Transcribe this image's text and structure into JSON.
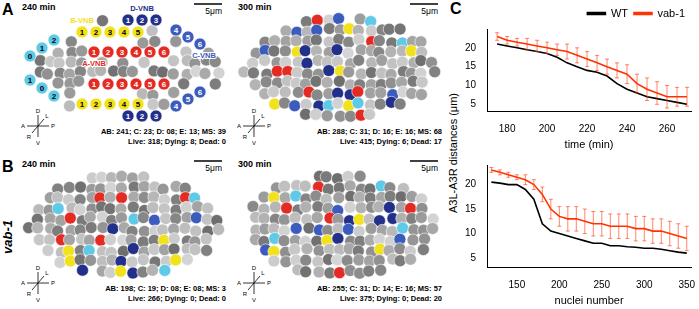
{
  "panels": [
    {
      "label": "A",
      "images": [
        {
          "time": "240 min",
          "scale_bar": "5μm",
          "counts": "AB: 241; C: 23; D: 08; E: 13; MS: 39",
          "status": "Live: 318; Dying: 8; Dead: 0",
          "groups": [
            {
              "color": "#5fc9e8",
              "numbers": [
                "0",
                "1",
                "2",
                "1",
                "0",
                "2"
              ]
            },
            {
              "name": "B-VNB",
              "color": "#f2e21c",
              "numbers": [
                "1",
                "2",
                "3",
                "4",
                "5",
                "1",
                "2",
                "3",
                "4",
                "5"
              ]
            },
            {
              "name": "A-VNB",
              "color": "#e32b24",
              "numbers": [
                "1",
                "2",
                "3",
                "4",
                "5",
                "6",
                "1",
                "2",
                "3",
                "4",
                "5",
                "6"
              ]
            },
            {
              "name": "D-VNB",
              "color": "#22308a",
              "numbers": [
                "1",
                "2",
                "3",
                "1",
                "2",
                "3"
              ]
            },
            {
              "name": "C-VNB",
              "color": "#3b5bbd",
              "numbers": [
                "4",
                "5",
                "6",
                "4",
                "5",
                "6"
              ]
            }
          ]
        },
        {
          "time": "300 min",
          "scale_bar": "5μm",
          "counts": "AB: 288; C: 31; D: 16; E: 16; MS: 68",
          "status": "Live: 415; Dying: 6; Dead: 17"
        }
      ]
    },
    {
      "label": "B",
      "genotype": "vab-1",
      "images": [
        {
          "time": "240 min",
          "scale_bar": "5μm",
          "counts": "AB: 198; C: 19; D: 08; E: 08; MS: 3",
          "status": "Live: 266; Dying: 0; Dead: 0"
        },
        {
          "time": "300 min",
          "scale_bar": "5μm",
          "counts": "AB: 255; C: 31; D: 14; E: 16; MS: 57",
          "status": "Live: 375; Dying: 0; Dead: 20"
        }
      ]
    }
  ],
  "compass": [
    "A",
    "P",
    "D",
    "V",
    "L",
    "R"
  ],
  "panel_c": {
    "label": "C",
    "ylabel": "A3L-A3R distances (μm)"
  },
  "chart_data": [
    {
      "type": "line",
      "xlabel": "time (min)",
      "x": [
        175,
        180,
        185,
        190,
        195,
        200,
        205,
        210,
        215,
        220,
        225,
        230,
        235,
        240,
        245,
        250,
        255,
        260,
        265,
        270
      ],
      "series": [
        {
          "name": "WT",
          "color": "#000000",
          "values": [
            21,
            20.5,
            20,
            19.5,
            19,
            18.5,
            17.5,
            16,
            15,
            14,
            13.5,
            12.5,
            10.5,
            9,
            8,
            7,
            6.5,
            6,
            5.5,
            5
          ]
        },
        {
          "name": "vab-1",
          "color": "#ff3300",
          "values": [
            23,
            22,
            21.5,
            21,
            20.5,
            20,
            19.5,
            19,
            18,
            17,
            16,
            15,
            14,
            13,
            10.5,
            9,
            8,
            7,
            7,
            7
          ],
          "errors": [
            1,
            1,
            1,
            1.5,
            1.5,
            1.5,
            1.5,
            2,
            2,
            2,
            2,
            2,
            2,
            2.5,
            2.5,
            3,
            3,
            3,
            2.5,
            2.5
          ]
        }
      ],
      "xlim": [
        170,
        272
      ],
      "xticks": [
        180,
        200,
        220,
        240,
        260
      ],
      "ylim": [
        3,
        25
      ],
      "yticks": [
        5,
        10,
        15,
        20
      ],
      "grid": false,
      "legend": "top right"
    },
    {
      "type": "line",
      "xlabel": "nuclei number",
      "x": [
        120,
        130,
        140,
        150,
        160,
        170,
        180,
        190,
        200,
        210,
        220,
        230,
        240,
        250,
        260,
        270,
        280,
        290,
        300,
        310,
        320,
        330,
        340,
        350
      ],
      "series": [
        {
          "name": "WT",
          "color": "#000000",
          "values": [
            20.5,
            20.3,
            20,
            20,
            19,
            17,
            12,
            10.5,
            10,
            9.5,
            9,
            8.5,
            8,
            8,
            7.5,
            7.5,
            7.3,
            7.2,
            7,
            7,
            6.8,
            6.5,
            6.2,
            6
          ]
        },
        {
          "name": "vab-1",
          "color": "#ff3300",
          "values": [
            23,
            22.5,
            22,
            21.5,
            21,
            20,
            18,
            15,
            13.5,
            13,
            13,
            12.5,
            12,
            12,
            11.5,
            11.5,
            11.5,
            11,
            11,
            10.5,
            10.5,
            10,
            9.5,
            9
          ],
          "errors": [
            0.5,
            0.5,
            0.5,
            0.5,
            1,
            1,
            1.5,
            2,
            2,
            2.5,
            2.5,
            2.5,
            2.5,
            2.5,
            2.5,
            2.5,
            2.5,
            2.5,
            2.5,
            2.5,
            2.5,
            2.5,
            2.5,
            2.5
          ]
        }
      ],
      "xlim": [
        115,
        355
      ],
      "xticks": [
        150,
        200,
        250,
        300,
        350
      ],
      "ylim": [
        3,
        24
      ],
      "yticks": [
        5,
        10,
        15,
        20
      ],
      "grid": false
    }
  ]
}
